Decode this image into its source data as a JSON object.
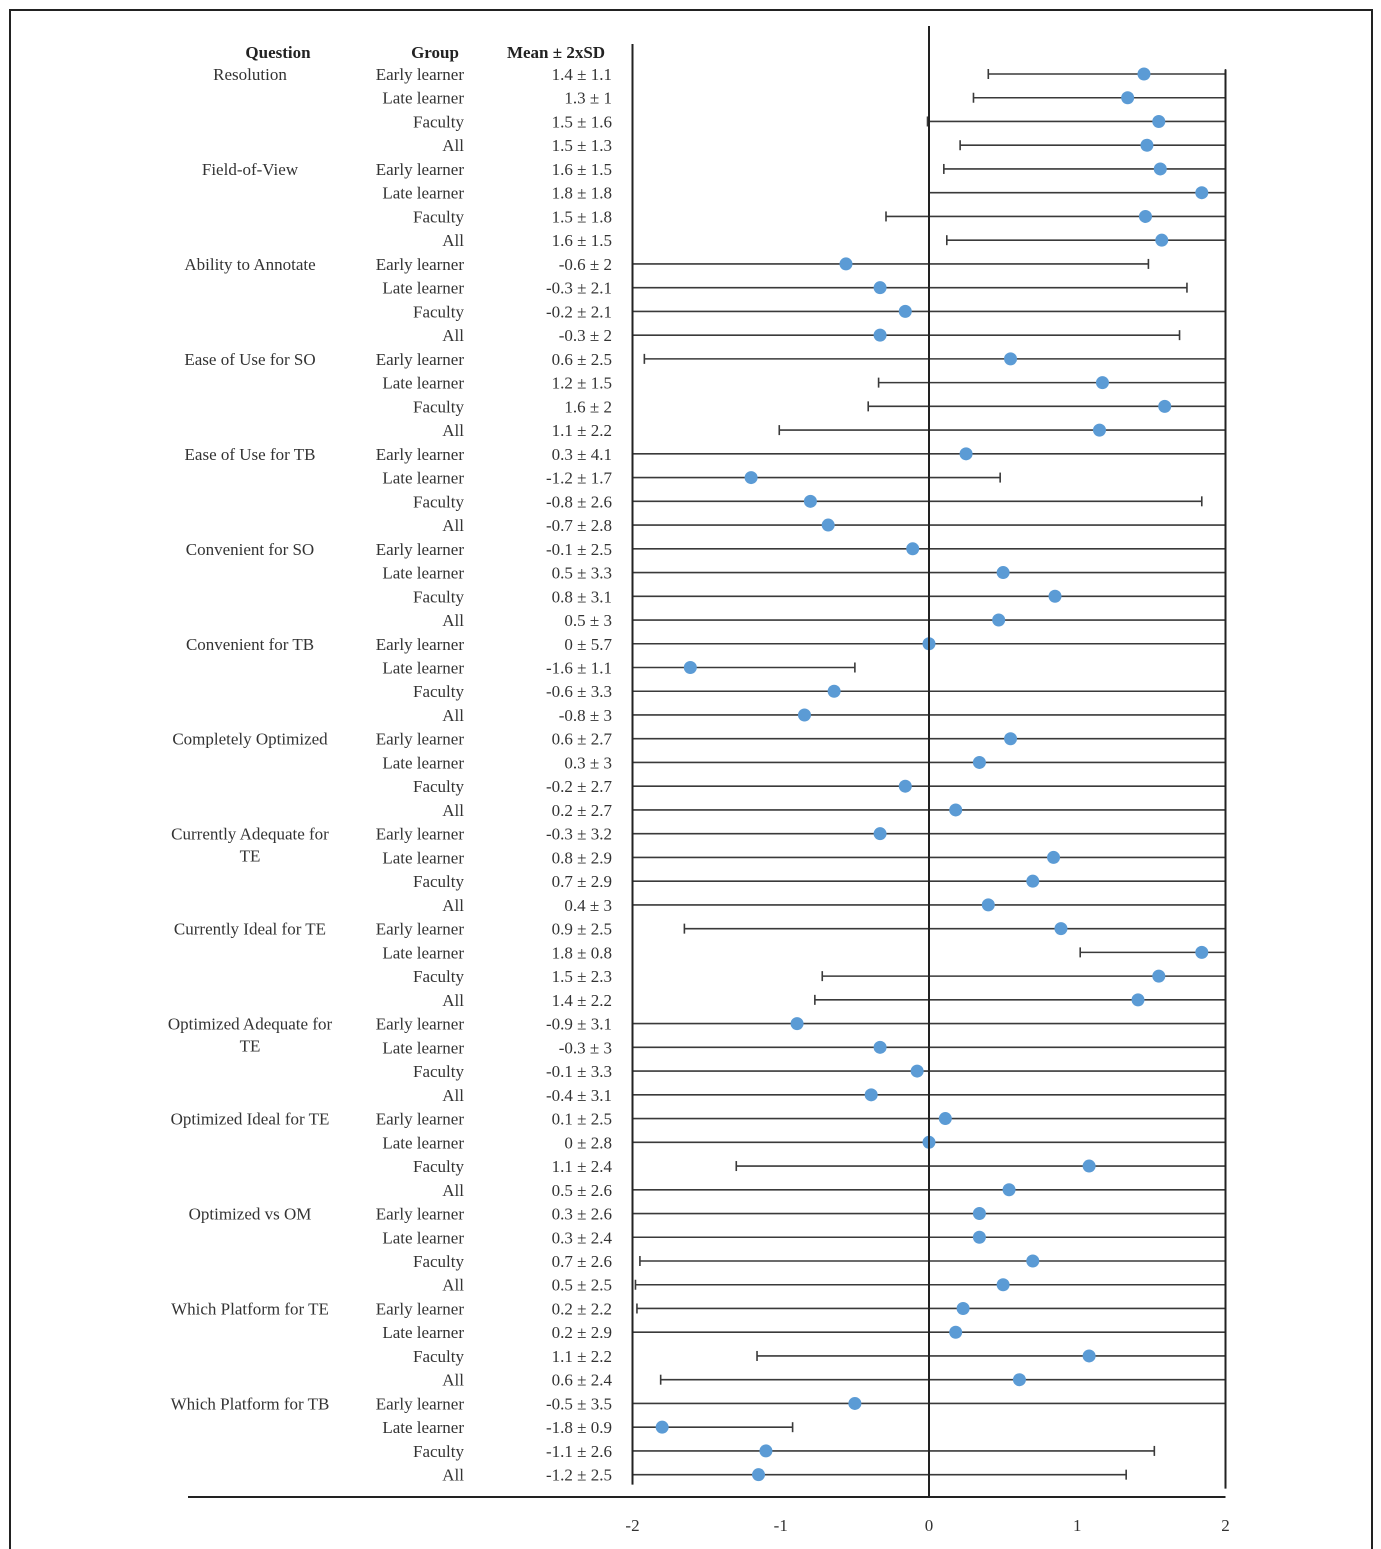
{
  "chart_data": {
    "type": "scatter",
    "headers": {
      "question": "Question",
      "group": "Group",
      "mean": "Mean ± 2xSD"
    },
    "x_ticks": [
      "-2",
      "-1",
      "0",
      "1",
      "2"
    ],
    "xlim": [
      -2,
      2
    ],
    "marker_color": "#5b9bd5",
    "rows": [
      {
        "question": "Resolution",
        "group": "Early learner",
        "label": "1.4 ± 1.1",
        "mean": 1.45,
        "low": 0.4,
        "high": 2.0
      },
      {
        "question": "",
        "group": "Late learner",
        "label": "1.3 ± 1",
        "mean": 1.34,
        "low": 0.3,
        "high": 2.0
      },
      {
        "question": "",
        "group": "Faculty",
        "label": "1.5 ± 1.6",
        "mean": 1.55,
        "low": -0.01,
        "high": 2.0
      },
      {
        "question": "",
        "group": "All",
        "label": "1.5 ± 1.3",
        "mean": 1.47,
        "low": 0.21,
        "high": 2.0
      },
      {
        "question": "Field-of-View",
        "group": "Early learner",
        "label": "1.6 ± 1.5",
        "mean": 1.56,
        "low": 0.1,
        "high": 2.0
      },
      {
        "question": "",
        "group": "Late learner",
        "label": "1.8 ± 1.8",
        "mean": 1.84,
        "low": 0.0,
        "high": 2.0
      },
      {
        "question": "",
        "group": "Faculty",
        "label": "1.5 ± 1.8",
        "mean": 1.46,
        "low": -0.29,
        "high": 2.0
      },
      {
        "question": "",
        "group": "All",
        "label": "1.6 ± 1.5",
        "mean": 1.57,
        "low": 0.12,
        "high": 2.0
      },
      {
        "question": "Ability to Annotate",
        "group": "Early learner",
        "label": "-0.6 ± 2",
        "mean": -0.56,
        "low": -2.0,
        "high": 1.48
      },
      {
        "question": "",
        "group": "Late learner",
        "label": "-0.3 ± 2.1",
        "mean": -0.33,
        "low": -2.0,
        "high": 1.74
      },
      {
        "question": "",
        "group": "Faculty",
        "label": "-0.2 ± 2.1",
        "mean": -0.16,
        "low": -2.0,
        "high": 2.0
      },
      {
        "question": "",
        "group": "All",
        "label": "-0.3 ± 2",
        "mean": -0.33,
        "low": -2.0,
        "high": 1.69
      },
      {
        "question": "Ease of Use for SO",
        "group": "Early learner",
        "label": "0.6 ± 2.5",
        "mean": 0.55,
        "low": -1.92,
        "high": 2.0
      },
      {
        "question": "",
        "group": "Late learner",
        "label": "1.2 ± 1.5",
        "mean": 1.17,
        "low": -0.34,
        "high": 2.0
      },
      {
        "question": "",
        "group": "Faculty",
        "label": "1.6 ± 2",
        "mean": 1.59,
        "low": -0.41,
        "high": 2.0
      },
      {
        "question": "",
        "group": "All",
        "label": "1.1 ± 2.2",
        "mean": 1.15,
        "low": -1.01,
        "high": 2.0
      },
      {
        "question": "Ease of Use for TB",
        "group": "Early learner",
        "label": "0.3 ± 4.1",
        "mean": 0.25,
        "low": -2.0,
        "high": 2.0
      },
      {
        "question": "",
        "group": "Late learner",
        "label": "-1.2 ± 1.7",
        "mean": -1.2,
        "low": -2.0,
        "high": 0.48
      },
      {
        "question": "",
        "group": "Faculty",
        "label": "-0.8 ± 2.6",
        "mean": -0.8,
        "low": -2.0,
        "high": 1.84
      },
      {
        "question": "",
        "group": "All",
        "label": "-0.7 ± 2.8",
        "mean": -0.68,
        "low": -2.0,
        "high": 2.0
      },
      {
        "question": "Convenient for SO",
        "group": "Early learner",
        "label": "-0.1 ± 2.5",
        "mean": -0.11,
        "low": -2.0,
        "high": 2.0
      },
      {
        "question": "",
        "group": "Late learner",
        "label": "0.5 ± 3.3",
        "mean": 0.5,
        "low": -2.0,
        "high": 2.0
      },
      {
        "question": "",
        "group": "Faculty",
        "label": "0.8 ± 3.1",
        "mean": 0.85,
        "low": -2.0,
        "high": 2.0
      },
      {
        "question": "",
        "group": "All",
        "label": "0.5 ± 3",
        "mean": 0.47,
        "low": -2.0,
        "high": 2.0
      },
      {
        "question": "Convenient for TB",
        "group": "Early learner",
        "label": "0 ± 5.7",
        "mean": 0.0,
        "low": -2.0,
        "high": 2.0
      },
      {
        "question": "",
        "group": "Late learner",
        "label": "-1.6 ± 1.1",
        "mean": -1.61,
        "low": -2.0,
        "high": -0.5
      },
      {
        "question": "",
        "group": "Faculty",
        "label": "-0.6 ± 3.3",
        "mean": -0.64,
        "low": -2.0,
        "high": 2.0
      },
      {
        "question": "",
        "group": "All",
        "label": "-0.8 ± 3",
        "mean": -0.84,
        "low": -2.0,
        "high": 2.0
      },
      {
        "question": "Completely Optimized",
        "group": "Early learner",
        "label": "0.6 ± 2.7",
        "mean": 0.55,
        "low": -2.0,
        "high": 2.0
      },
      {
        "question": "",
        "group": "Late learner",
        "label": "0.3 ± 3",
        "mean": 0.34,
        "low": -2.0,
        "high": 2.0
      },
      {
        "question": "",
        "group": "Faculty",
        "label": "-0.2 ± 2.7",
        "mean": -0.16,
        "low": -2.0,
        "high": 2.0
      },
      {
        "question": "",
        "group": "All",
        "label": "0.2 ± 2.7",
        "mean": 0.18,
        "low": -2.0,
        "high": 2.0
      },
      {
        "question": "Currently Adequate for\nTE",
        "group": "Early learner",
        "label": "-0.3 ± 3.2",
        "mean": -0.33,
        "low": -2.0,
        "high": 2.0
      },
      {
        "question": "",
        "group": "Late learner",
        "label": "0.8 ± 2.9",
        "mean": 0.84,
        "low": -2.0,
        "high": 2.0
      },
      {
        "question": "",
        "group": "Faculty",
        "label": "0.7 ± 2.9",
        "mean": 0.7,
        "low": -2.0,
        "high": 2.0
      },
      {
        "question": "",
        "group": "All",
        "label": "0.4 ± 3",
        "mean": 0.4,
        "low": -2.0,
        "high": 2.0
      },
      {
        "question": "Currently Ideal for TE",
        "group": "Early learner",
        "label": "0.9 ± 2.5",
        "mean": 0.89,
        "low": -1.65,
        "high": 2.0
      },
      {
        "question": "",
        "group": "Late learner",
        "label": "1.8 ± 0.8",
        "mean": 1.84,
        "low": 1.02,
        "high": 2.0
      },
      {
        "question": "",
        "group": "Faculty",
        "label": "1.5 ± 2.3",
        "mean": 1.55,
        "low": -0.72,
        "high": 2.0
      },
      {
        "question": "",
        "group": "All",
        "label": "1.4 ± 2.2",
        "mean": 1.41,
        "low": -0.77,
        "high": 2.0
      },
      {
        "question": "Optimized Adequate for\nTE",
        "group": "Early learner",
        "label": "-0.9 ± 3.1",
        "mean": -0.89,
        "low": -2.0,
        "high": 2.0
      },
      {
        "question": "",
        "group": "Late learner",
        "label": "-0.3 ± 3",
        "mean": -0.33,
        "low": -2.0,
        "high": 2.0
      },
      {
        "question": "",
        "group": "Faculty",
        "label": "-0.1 ± 3.3",
        "mean": -0.08,
        "low": -2.0,
        "high": 2.0
      },
      {
        "question": "",
        "group": "All",
        "label": "-0.4 ± 3.1",
        "mean": -0.39,
        "low": -2.0,
        "high": 2.0
      },
      {
        "question": "Optimized Ideal for TE",
        "group": "Early learner",
        "label": "0.1 ± 2.5",
        "mean": 0.11,
        "low": -2.0,
        "high": 2.0
      },
      {
        "question": "",
        "group": "Late learner",
        "label": "0 ± 2.8",
        "mean": 0.0,
        "low": -2.0,
        "high": 2.0
      },
      {
        "question": "",
        "group": "Faculty",
        "label": "1.1 ± 2.4",
        "mean": 1.08,
        "low": -1.3,
        "high": 2.0
      },
      {
        "question": "",
        "group": "All",
        "label": "0.5 ± 2.6",
        "mean": 0.54,
        "low": -2.0,
        "high": 2.0
      },
      {
        "question": "Optimized vs OM",
        "group": "Early learner",
        "label": "0.3 ± 2.6",
        "mean": 0.34,
        "low": -2.0,
        "high": 2.0
      },
      {
        "question": "",
        "group": "Late learner",
        "label": "0.3 ± 2.4",
        "mean": 0.34,
        "low": -2.0,
        "high": 2.0
      },
      {
        "question": "",
        "group": "Faculty",
        "label": "0.7 ± 2.6",
        "mean": 0.7,
        "low": -1.95,
        "high": 2.0
      },
      {
        "question": "",
        "group": "All",
        "label": "0.5 ± 2.5",
        "mean": 0.5,
        "low": -1.98,
        "high": 2.0
      },
      {
        "question": "Which Platform for TE",
        "group": "Early learner",
        "label": "0.2 ± 2.2",
        "mean": 0.23,
        "low": -1.97,
        "high": 2.0
      },
      {
        "question": "",
        "group": "Late learner",
        "label": "0.2 ± 2.9",
        "mean": 0.18,
        "low": -2.0,
        "high": 2.0
      },
      {
        "question": "",
        "group": "Faculty",
        "label": "1.1 ± 2.2",
        "mean": 1.08,
        "low": -1.16,
        "high": 2.0
      },
      {
        "question": "",
        "group": "All",
        "label": "0.6 ± 2.4",
        "mean": 0.61,
        "low": -1.81,
        "high": 2.0
      },
      {
        "question": "Which Platform for TB",
        "group": "Early learner",
        "label": "-0.5 ± 3.5",
        "mean": -0.5,
        "low": -2.0,
        "high": 2.0
      },
      {
        "question": "",
        "group": "Late learner",
        "label": "-1.8 ± 0.9",
        "mean": -1.8,
        "low": -2.0,
        "high": -0.92
      },
      {
        "question": "",
        "group": "Faculty",
        "label": "-1.1 ± 2.6",
        "mean": -1.1,
        "low": -2.0,
        "high": 1.52
      },
      {
        "question": "",
        "group": "All",
        "label": "-1.2 ± 2.5",
        "mean": -1.15,
        "low": -2.0,
        "high": 1.33
      }
    ]
  }
}
